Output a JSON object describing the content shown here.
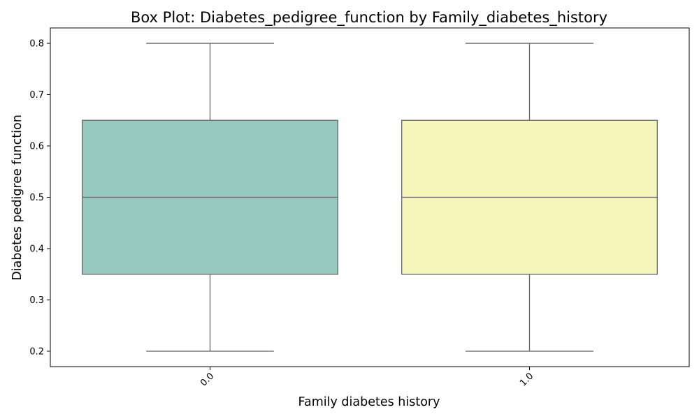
{
  "chart_data": {
    "type": "box",
    "title": "Box Plot: Diabetes_pedigree_function by Family_diabetes_history",
    "xlabel": "Family diabetes history",
    "ylabel": "Diabetes pedigree function",
    "ylim": [
      0.17,
      0.83
    ],
    "yticks": [
      "0.2",
      "0.3",
      "0.4",
      "0.5",
      "0.6",
      "0.7",
      "0.8"
    ],
    "ytick_values": [
      0.2,
      0.3,
      0.4,
      0.5,
      0.6,
      0.7,
      0.8
    ],
    "categories": [
      "0.0",
      "1.0"
    ],
    "boxes": [
      {
        "category": "0.0",
        "min": 0.2,
        "q1": 0.35,
        "median": 0.5,
        "q3": 0.65,
        "max": 0.8,
        "color": "#98c9c1"
      },
      {
        "category": "1.0",
        "min": 0.2,
        "q1": 0.35,
        "median": 0.5,
        "q3": 0.65,
        "max": 0.8,
        "color": "#f6f6bc"
      }
    ],
    "line_color": "#666666",
    "grid": false,
    "xtick_rotation": 45
  }
}
